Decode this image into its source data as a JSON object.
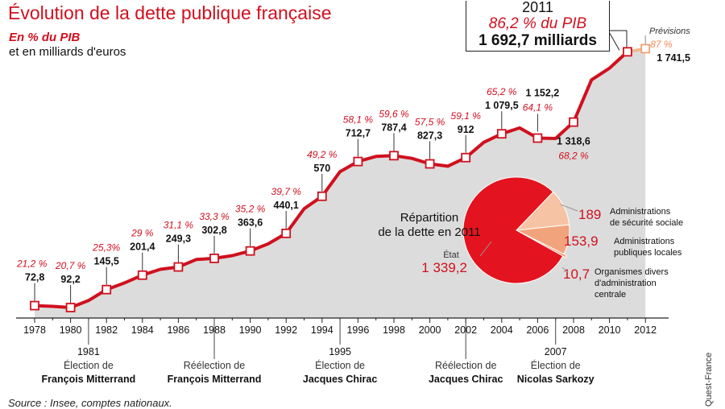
{
  "header": {
    "title": "Évolution de la dette publique française",
    "subtitle_pct": "En % du PIB",
    "subtitle_eur": "et en milliards d'euros"
  },
  "source": "Source : Insee, comptes nationaux.",
  "credit": "Quest-France",
  "callout": {
    "year": "2011",
    "pct": "86,2 % du PIB",
    "amount": "1 692,7 milliards"
  },
  "forecast": {
    "label": "Prévisions",
    "pct": "87 %",
    "amount": "1 741,5"
  },
  "colors": {
    "accent": "#d0101e",
    "area": "#dcdcdc",
    "pie_main": "#e3141f",
    "pie_1": "#f6c3a5",
    "pie_2": "#f1a47c",
    "pie_3": "#ec8f63"
  },
  "chart_data": {
    "type": "line",
    "x": [
      1978,
      1979,
      1980,
      1981,
      1982,
      1983,
      1984,
      1985,
      1986,
      1987,
      1988,
      1989,
      1990,
      1991,
      1992,
      1993,
      1994,
      1995,
      1996,
      1997,
      1998,
      1999,
      2000,
      2001,
      2002,
      2003,
      2004,
      2005,
      2006,
      2007,
      2008,
      2009,
      2010,
      2011,
      2012
    ],
    "values": [
      21.2,
      21.0,
      20.7,
      22.5,
      25.3,
      27.0,
      29.0,
      30.5,
      31.1,
      33.0,
      33.3,
      34.0,
      35.2,
      37.0,
      39.7,
      46.0,
      49.2,
      55.5,
      58.1,
      59.4,
      59.6,
      58.9,
      57.5,
      56.9,
      59.1,
      63.0,
      65.2,
      66.7,
      64.1,
      64.0,
      68.2,
      79.0,
      82.0,
      86.2,
      87.0
    ],
    "forecast_from": 2011,
    "xticks": [
      "1978",
      "1980",
      "1982",
      "1984",
      "1986",
      "1988",
      "1990",
      "1992",
      "1994",
      "1996",
      "1998",
      "2000",
      "2002",
      "2004",
      "2006",
      "2008",
      "2010",
      "2012"
    ],
    "labels": [
      {
        "year": 1978,
        "pct": "21,2 %",
        "eur": "72,8"
      },
      {
        "year": 1980,
        "pct": "20,7 %",
        "eur": "92,2"
      },
      {
        "year": 1982,
        "pct": "25,3%",
        "eur": "145,5"
      },
      {
        "year": 1984,
        "pct": "29 %",
        "eur": "201,4"
      },
      {
        "year": 1986,
        "pct": "31,1 %",
        "eur": "249,3"
      },
      {
        "year": 1988,
        "pct": "33,3 %",
        "eur": "302,8"
      },
      {
        "year": 1990,
        "pct": "35,2 %",
        "eur": "363,6"
      },
      {
        "year": 1992,
        "pct": "39,7 %",
        "eur": "440,1"
      },
      {
        "year": 1994,
        "pct": "49,2 %",
        "eur": "570"
      },
      {
        "year": 1996,
        "pct": "58,1 %",
        "eur": "712,7"
      },
      {
        "year": 1998,
        "pct": "59,6 %",
        "eur": "787,4"
      },
      {
        "year": 2000,
        "pct": "57,5 %",
        "eur": "827,3"
      },
      {
        "year": 2002,
        "pct": "59,1 %",
        "eur": "912"
      },
      {
        "year": 2004,
        "pct": "65,2 %",
        "eur": "1 079,5"
      },
      {
        "year": 2006,
        "pct": "64,1 %",
        "eur": "1 152,2"
      },
      {
        "year": 2008,
        "pct": "68,2 %",
        "eur": "1 318,6"
      }
    ],
    "events": [
      {
        "year": "1981",
        "line1": "Élection de",
        "line2": "François Mitterrand"
      },
      {
        "year": "",
        "line1": "Réélection de",
        "line2": "François Mitterrand"
      },
      {
        "year": "1995",
        "line1": "Élection de",
        "line2": "Jacques Chirac"
      },
      {
        "year": "",
        "line1": "Réélection de",
        "line2": "Jacques Chirac"
      },
      {
        "year": "2007",
        "line1": "Élection de",
        "line2": "Nicolas Sarkozy"
      }
    ],
    "pie": {
      "title_line1": "Répartition",
      "title_line2": "de la dette en 2011",
      "slices": [
        {
          "value": "1 339,2",
          "label": "État",
          "value_num": 1339.2
        },
        {
          "value": "189",
          "label_line1": "Administrations",
          "label_line2": "de sécurité sociale",
          "value_num": 189
        },
        {
          "value": "153,9",
          "label_line1": "Administrations",
          "label_line2": "publiques locales",
          "value_num": 153.9
        },
        {
          "value": "10,7",
          "label_line1": "Organismes divers",
          "label_line2": "d'administration",
          "label_line3": "centrale",
          "value_num": 10.7
        }
      ]
    }
  }
}
